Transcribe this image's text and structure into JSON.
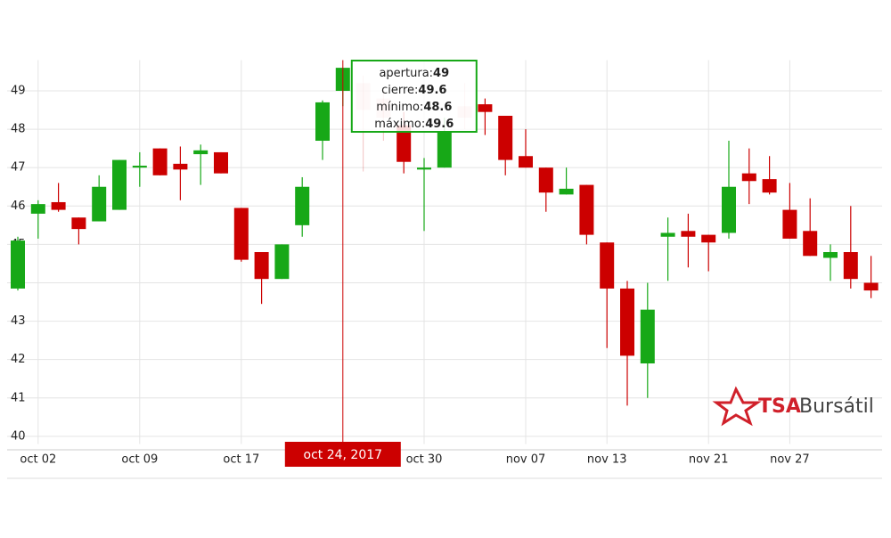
{
  "chart_data": {
    "type": "candlestick",
    "categories": [
      null,
      "oct 02",
      null,
      null,
      null,
      null,
      "oct 09",
      null,
      null,
      null,
      null,
      "oct 17",
      null,
      null,
      null,
      null,
      null,
      null,
      null,
      null,
      "oct 30",
      null,
      null,
      null,
      null,
      "nov 07",
      null,
      null,
      null,
      "nov 13",
      null,
      null,
      null,
      null,
      "nov 21",
      null,
      null,
      null,
      "nov 27",
      null,
      null,
      null,
      null
    ],
    "open": [
      43.85,
      45.8,
      46.1,
      45.7,
      45.6,
      45.9,
      47.0,
      47.5,
      47.1,
      47.35,
      47.4,
      45.95,
      44.8,
      44.1,
      45.5,
      47.7,
      49,
      49.2,
      48.8,
      48.1,
      46.95,
      47.0,
      48.6,
      48.65,
      48.35,
      47.3,
      47.0,
      46.3,
      46.55,
      45.05,
      43.85,
      41.9,
      45.2,
      45.35,
      45.25,
      45.3,
      46.85,
      46.7,
      45.9,
      45.35,
      44.65,
      44.8,
      44.0
    ],
    "high": [
      45.2,
      46.15,
      46.6,
      45.7,
      46.8,
      47.2,
      47.4,
      47.5,
      47.55,
      47.6,
      47.4,
      45.95,
      44.8,
      45.0,
      46.75,
      48.75,
      49.6,
      49.4,
      49.0,
      48.45,
      47.25,
      48.3,
      49.2,
      48.8,
      48.35,
      48.0,
      47.0,
      47.0,
      46.55,
      45.05,
      44.05,
      44.0,
      45.7,
      45.8,
      45.25,
      47.7,
      47.5,
      47.3,
      46.6,
      46.2,
      45.0,
      46.0,
      44.7
    ],
    "low": [
      43.8,
      45.15,
      45.85,
      45.0,
      45.6,
      45.9,
      46.5,
      46.8,
      46.15,
      46.55,
      46.85,
      44.55,
      43.45,
      44.1,
      45.2,
      47.2,
      48.6,
      46.9,
      47.7,
      46.85,
      45.35,
      47.0,
      48.0,
      47.85,
      46.8,
      47.0,
      45.85,
      46.3,
      45.0,
      42.3,
      40.8,
      41.0,
      44.05,
      44.4,
      44.3,
      45.15,
      46.05,
      46.3,
      45.15,
      44.7,
      44.05,
      43.85,
      43.6
    ],
    "close": [
      45.1,
      46.05,
      45.9,
      45.4,
      46.5,
      47.2,
      47.05,
      46.8,
      46.95,
      47.45,
      46.85,
      44.6,
      44.1,
      45.0,
      46.5,
      48.7,
      49.6,
      48.5,
      48.3,
      47.15,
      47.0,
      47.95,
      48.3,
      48.45,
      47.2,
      47.0,
      46.35,
      46.45,
      45.25,
      43.85,
      42.1,
      43.3,
      45.3,
      45.2,
      45.05,
      46.5,
      46.65,
      46.35,
      45.15,
      44.7,
      44.8,
      44.1,
      43.8
    ],
    "up_color": "#17a817",
    "down_color": "#cc0000",
    "ylim": [
      39.8,
      49.8
    ],
    "yticks": [
      40,
      41,
      42,
      43,
      44,
      45,
      46,
      47,
      48,
      49
    ],
    "grid": true,
    "crosshair": {
      "label": "oct 24, 2017",
      "color": "#cc0000"
    },
    "tooltip": [
      {
        "label": "apertura:",
        "value": 49
      },
      {
        "label": "cierre:",
        "value": 49.6
      },
      {
        "label": "mínimo:",
        "value": 48.6
      },
      {
        "label": "máximo:",
        "value": 49.6
      }
    ]
  },
  "logo": {
    "brand": "TSA",
    "name": "Bursátil"
  }
}
